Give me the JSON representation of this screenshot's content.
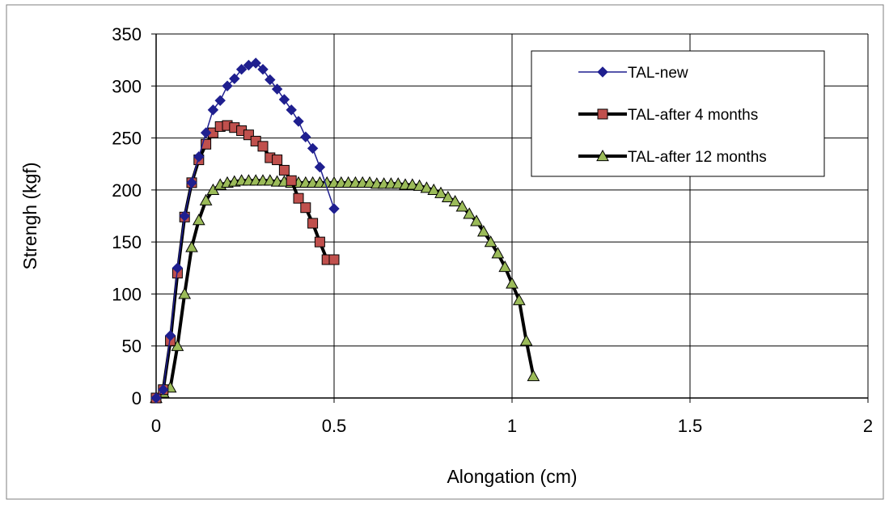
{
  "chart_data": {
    "type": "line",
    "title": "",
    "xlabel": "Alongation (cm)",
    "ylabel": "Strengh (kgf)",
    "xlim": [
      0,
      2
    ],
    "ylim": [
      0,
      350
    ],
    "x_ticks": [
      "0",
      "0.5",
      "1",
      "1.5",
      "2"
    ],
    "y_ticks": [
      "0",
      "50",
      "100",
      "150",
      "200",
      "250",
      "300",
      "350"
    ],
    "grid": true,
    "legend_position": "top-right",
    "series": [
      {
        "name": "TAL-new",
        "color": "#1f1f8f",
        "marker": "diamond",
        "line_style": "thin",
        "points": [
          [
            0,
            0
          ],
          [
            0.02,
            8
          ],
          [
            0.04,
            60
          ],
          [
            0.06,
            125
          ],
          [
            0.08,
            175
          ],
          [
            0.1,
            207
          ],
          [
            0.12,
            232
          ],
          [
            0.14,
            255
          ],
          [
            0.16,
            277
          ],
          [
            0.18,
            286
          ],
          [
            0.2,
            300
          ],
          [
            0.22,
            307
          ],
          [
            0.24,
            316
          ],
          [
            0.26,
            320
          ],
          [
            0.28,
            322
          ],
          [
            0.3,
            316
          ],
          [
            0.32,
            306
          ],
          [
            0.34,
            297
          ],
          [
            0.36,
            287
          ],
          [
            0.38,
            277
          ],
          [
            0.4,
            266
          ],
          [
            0.42,
            251
          ],
          [
            0.44,
            240
          ],
          [
            0.46,
            222
          ],
          [
            0.5,
            182
          ]
        ]
      },
      {
        "name": "TAL-after 4 months",
        "color": "#c0504d",
        "marker": "square",
        "line_style": "thick",
        "points": [
          [
            0,
            0
          ],
          [
            0.02,
            8
          ],
          [
            0.04,
            55
          ],
          [
            0.06,
            120
          ],
          [
            0.08,
            174
          ],
          [
            0.1,
            207
          ],
          [
            0.12,
            229
          ],
          [
            0.14,
            244
          ],
          [
            0.16,
            255
          ],
          [
            0.18,
            261
          ],
          [
            0.2,
            262
          ],
          [
            0.22,
            260
          ],
          [
            0.24,
            257
          ],
          [
            0.26,
            253
          ],
          [
            0.28,
            247
          ],
          [
            0.3,
            242
          ],
          [
            0.32,
            231
          ],
          [
            0.34,
            229
          ],
          [
            0.36,
            219
          ],
          [
            0.38,
            209
          ],
          [
            0.4,
            192
          ],
          [
            0.42,
            183
          ],
          [
            0.44,
            168
          ],
          [
            0.46,
            150
          ],
          [
            0.48,
            133
          ],
          [
            0.5,
            133
          ]
        ]
      },
      {
        "name": "TAL-after 12 months",
        "color": "#9bbb59",
        "marker": "triangle",
        "line_style": "thick",
        "points": [
          [
            0,
            0
          ],
          [
            0.02,
            5
          ],
          [
            0.04,
            10
          ],
          [
            0.06,
            50
          ],
          [
            0.08,
            100
          ],
          [
            0.1,
            145
          ],
          [
            0.12,
            171
          ],
          [
            0.14,
            190
          ],
          [
            0.16,
            200
          ],
          [
            0.18,
            205
          ],
          [
            0.2,
            207
          ],
          [
            0.22,
            208
          ],
          [
            0.24,
            209
          ],
          [
            0.26,
            209
          ],
          [
            0.28,
            209
          ],
          [
            0.3,
            209
          ],
          [
            0.32,
            209
          ],
          [
            0.34,
            208
          ],
          [
            0.36,
            208
          ],
          [
            0.38,
            207
          ],
          [
            0.4,
            207
          ],
          [
            0.42,
            207
          ],
          [
            0.44,
            207
          ],
          [
            0.46,
            207
          ],
          [
            0.48,
            207
          ],
          [
            0.5,
            207
          ],
          [
            0.52,
            207
          ],
          [
            0.54,
            207
          ],
          [
            0.56,
            207
          ],
          [
            0.58,
            207
          ],
          [
            0.6,
            207
          ],
          [
            0.62,
            206
          ],
          [
            0.64,
            206
          ],
          [
            0.66,
            206
          ],
          [
            0.68,
            206
          ],
          [
            0.7,
            205
          ],
          [
            0.72,
            205
          ],
          [
            0.74,
            204
          ],
          [
            0.76,
            202
          ],
          [
            0.78,
            200
          ],
          [
            0.8,
            197
          ],
          [
            0.82,
            193
          ],
          [
            0.84,
            189
          ],
          [
            0.86,
            184
          ],
          [
            0.88,
            177
          ],
          [
            0.9,
            170
          ],
          [
            0.92,
            160
          ],
          [
            0.94,
            150
          ],
          [
            0.96,
            139
          ],
          [
            0.98,
            126
          ],
          [
            1.0,
            110
          ],
          [
            1.02,
            94
          ],
          [
            1.04,
            55
          ],
          [
            1.06,
            21
          ]
        ]
      }
    ]
  }
}
